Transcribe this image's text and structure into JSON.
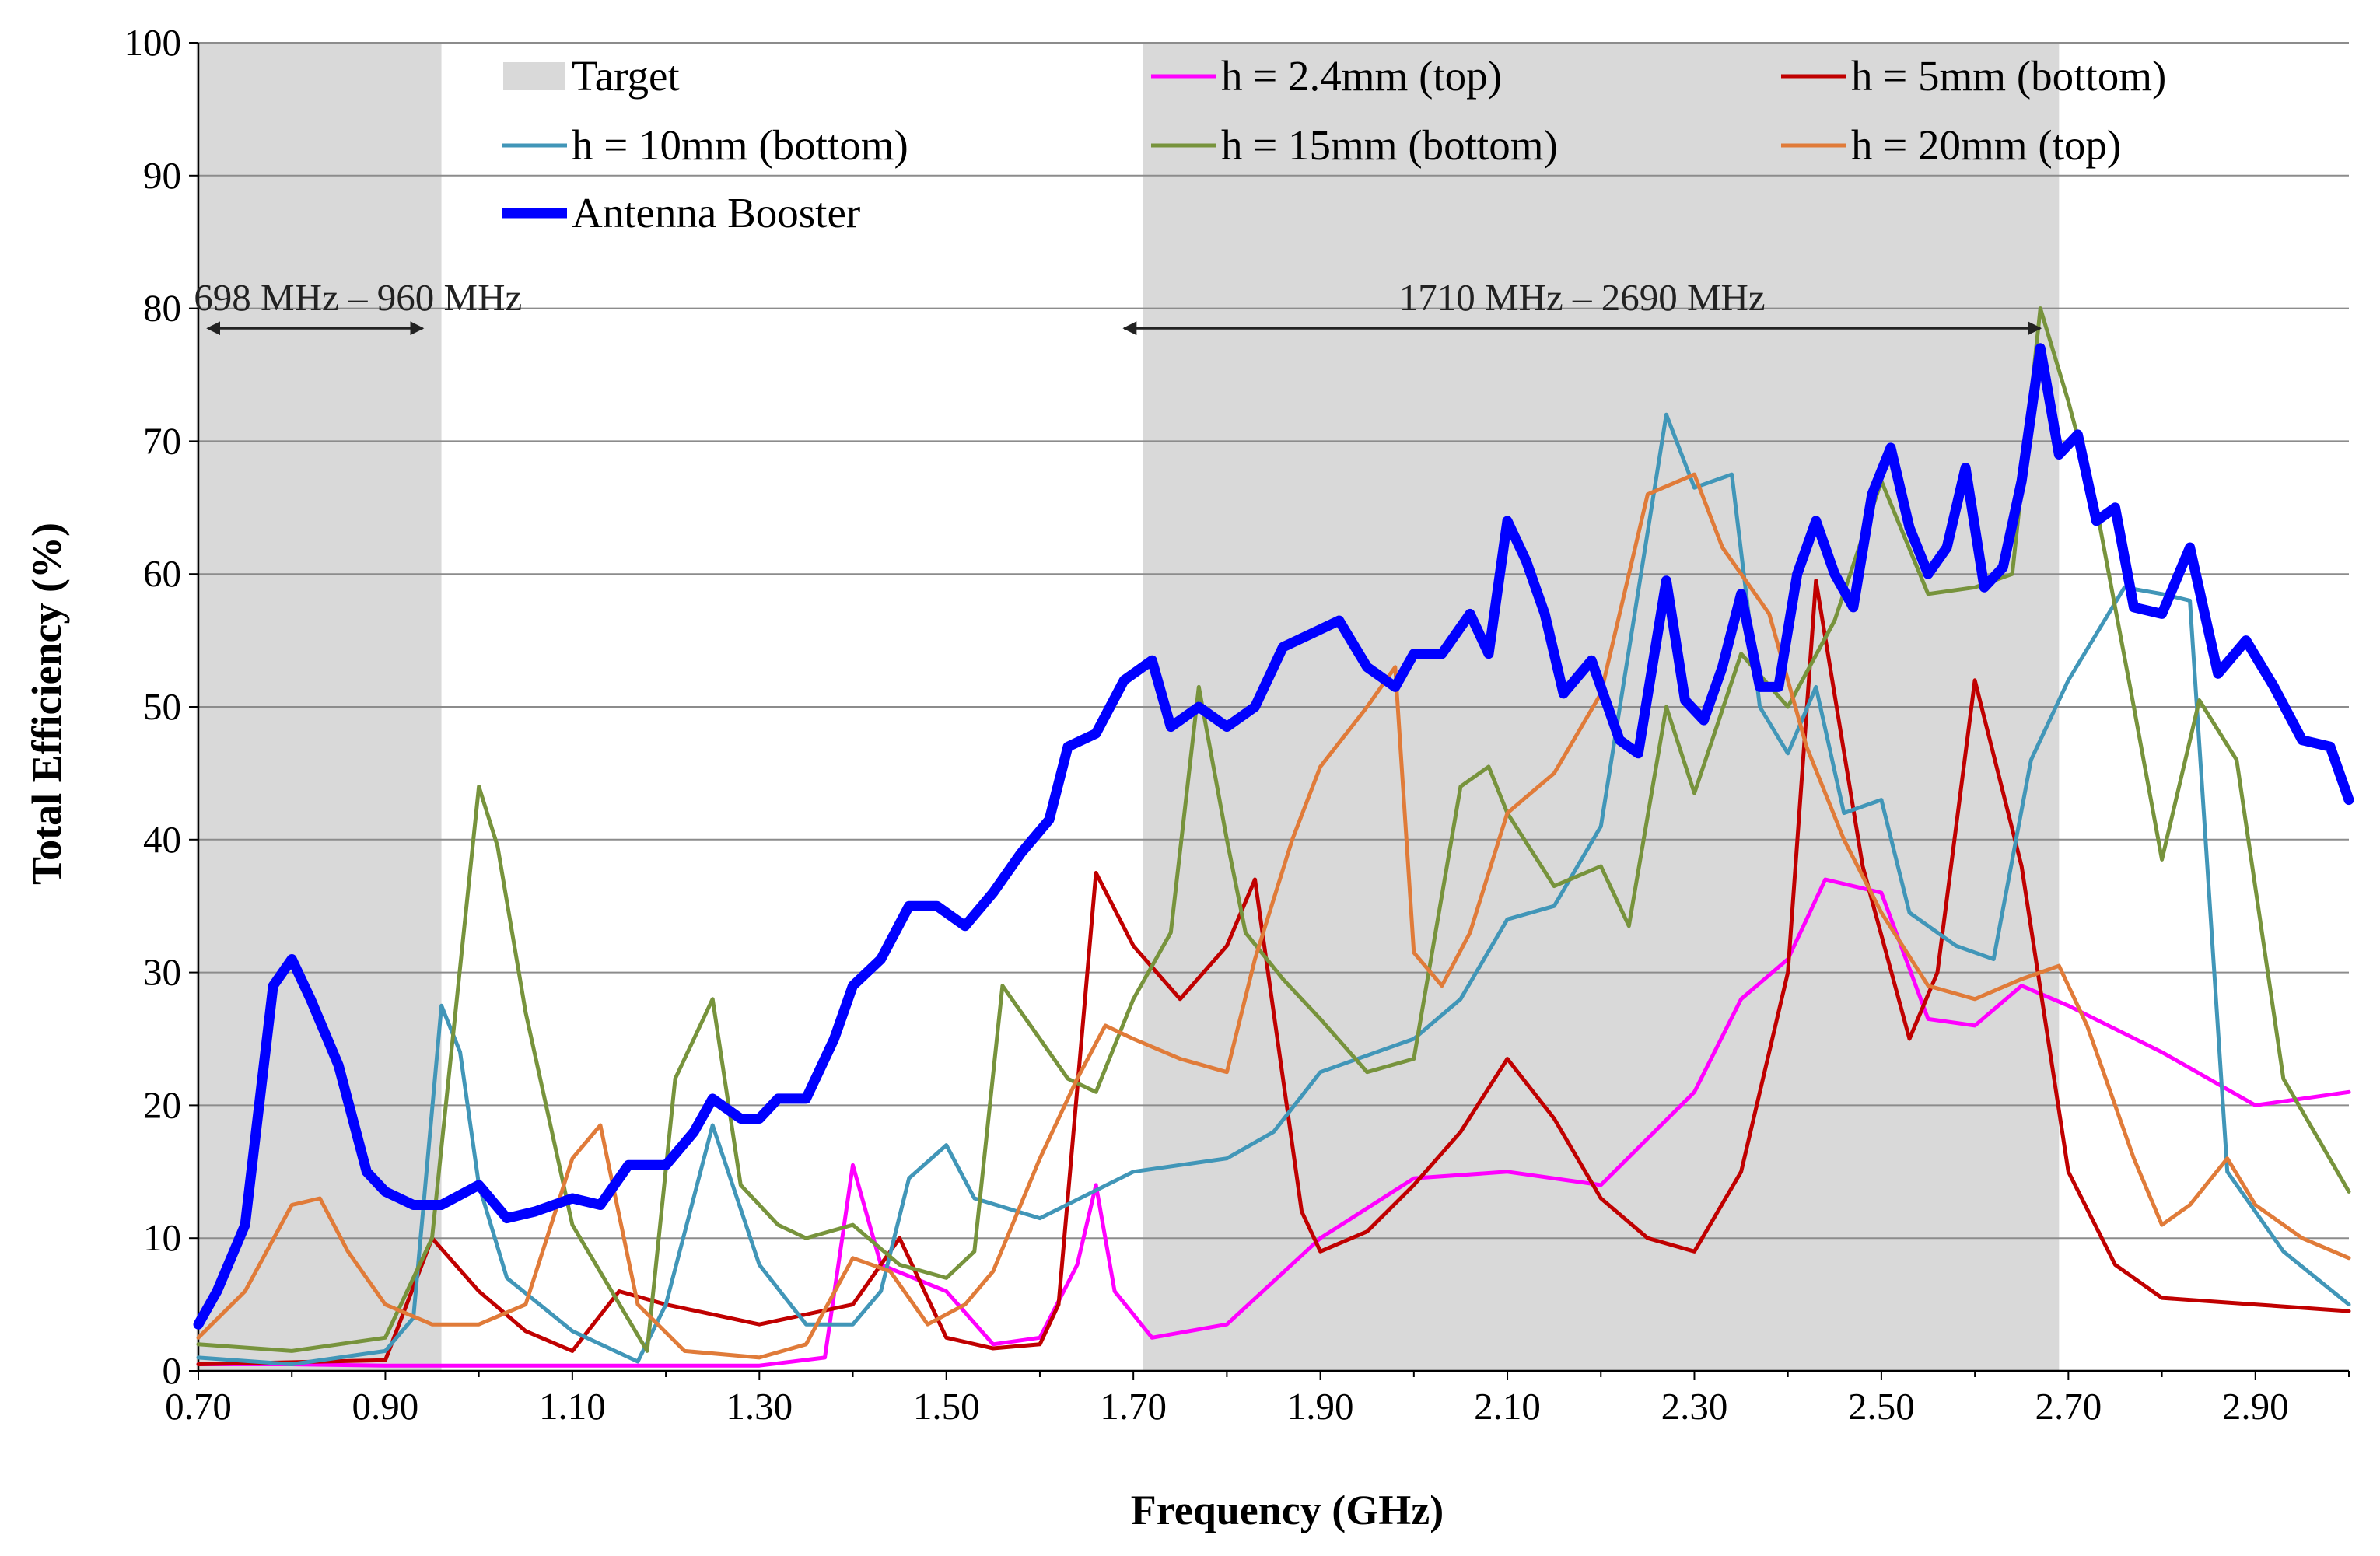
{
  "chart_data": {
    "type": "line",
    "xlabel": "Frequency (GHz)",
    "ylabel": "Total Efficiency (%)",
    "xlim": [
      0.7,
      3.0
    ],
    "ylim": [
      0,
      100
    ],
    "xticks": [
      0.7,
      0.9,
      1.1,
      1.3,
      1.5,
      1.7,
      1.9,
      2.1,
      2.3,
      2.5,
      2.7,
      2.9
    ],
    "xtick_labels": [
      "0.70",
      "0.90",
      "1.10",
      "1.30",
      "1.50",
      "1.70",
      "1.90",
      "2.10",
      "2.30",
      "2.50",
      "2.70",
      "2.90"
    ],
    "yticks": [
      0,
      10,
      20,
      30,
      40,
      50,
      60,
      70,
      80,
      90,
      100
    ],
    "ytick_labels": [
      "0",
      "10",
      "20",
      "30",
      "40",
      "50",
      "60",
      "70",
      "80",
      "90",
      "100"
    ],
    "grid": "horizontal",
    "target_bands": [
      [
        0.698,
        0.96
      ],
      [
        1.71,
        2.69
      ]
    ],
    "target_label": "Target",
    "target_color": "#d9d9d9",
    "annotations": [
      {
        "label": "698 MHz – 960 MHz",
        "from": 0.71,
        "to": 0.94,
        "y": 78.5
      },
      {
        "label": "1710 MHz – 2690 MHz",
        "from": 1.69,
        "to": 2.67,
        "y": 78.5
      }
    ],
    "legend_position": "top",
    "series": [
      {
        "name": "h = 2.4mm (top)",
        "color": "#ff00ff",
        "width": 5,
        "x": [
          0.7,
          0.8,
          0.9,
          1.0,
          1.1,
          1.2,
          1.3,
          1.37,
          1.4,
          1.43,
          1.5,
          1.55,
          1.6,
          1.64,
          1.66,
          1.68,
          1.72,
          1.8,
          1.9,
          2.0,
          2.1,
          2.2,
          2.3,
          2.35,
          2.4,
          2.44,
          2.5,
          2.55,
          2.6,
          2.65,
          2.7,
          2.8,
          2.9,
          3.0
        ],
        "y": [
          0.5,
          0.5,
          0.4,
          0.4,
          0.4,
          0.4,
          0.4,
          1,
          15.5,
          8,
          6,
          2,
          2.5,
          8,
          14,
          6,
          2.5,
          3.5,
          10,
          14.5,
          15,
          14,
          21,
          28,
          31,
          37,
          36,
          26.5,
          26,
          29,
          27.5,
          24,
          20,
          21
        ]
      },
      {
        "name": "h = 5mm (bottom)",
        "color": "#c00000",
        "width": 5,
        "x": [
          0.7,
          0.9,
          0.95,
          1.0,
          1.05,
          1.1,
          1.15,
          1.2,
          1.3,
          1.4,
          1.45,
          1.5,
          1.55,
          1.6,
          1.62,
          1.66,
          1.7,
          1.75,
          1.8,
          1.83,
          1.88,
          1.9,
          1.95,
          2.0,
          2.05,
          2.1,
          2.15,
          2.2,
          2.25,
          2.3,
          2.35,
          2.4,
          2.43,
          2.48,
          2.53,
          2.56,
          2.6,
          2.65,
          2.7,
          2.75,
          2.8,
          2.9,
          3.0
        ],
        "y": [
          0.5,
          0.8,
          10,
          6,
          3,
          1.5,
          6,
          5,
          3.5,
          5,
          10,
          2.5,
          1.7,
          2,
          5,
          37.5,
          32,
          28,
          32,
          37,
          12,
          9,
          10.5,
          14,
          18,
          23.5,
          19,
          13,
          10,
          9,
          15,
          30,
          59.5,
          38,
          25,
          30,
          52,
          38,
          15,
          8,
          5.5,
          5,
          4.5
        ]
      },
      {
        "name": "h = 10mm (bottom)",
        "color": "#4196b8",
        "width": 5,
        "x": [
          0.7,
          0.8,
          0.9,
          0.93,
          0.96,
          0.98,
          1.0,
          1.03,
          1.1,
          1.17,
          1.2,
          1.25,
          1.3,
          1.35,
          1.4,
          1.43,
          1.46,
          1.5,
          1.53,
          1.6,
          1.7,
          1.8,
          1.85,
          1.9,
          2.0,
          2.05,
          2.1,
          2.15,
          2.2,
          2.27,
          2.3,
          2.34,
          2.37,
          2.4,
          2.43,
          2.46,
          2.5,
          2.53,
          2.58,
          2.62,
          2.66,
          2.7,
          2.76,
          2.8,
          2.83,
          2.87,
          2.93,
          3.0
        ],
        "y": [
          1,
          0.5,
          1.5,
          4,
          27.5,
          24,
          14,
          7,
          3,
          0.7,
          5,
          18.5,
          8,
          3.5,
          3.5,
          6,
          14.5,
          17,
          13,
          11.5,
          15,
          16,
          18,
          22.5,
          25,
          28,
          34,
          35,
          41,
          72,
          66.5,
          67.5,
          50,
          46.5,
          51.5,
          42,
          43,
          34.5,
          32,
          31,
          46,
          52,
          59,
          58.5,
          58,
          15,
          9,
          5
        ]
      },
      {
        "name": "h = 15mm (bottom)",
        "color": "#77933c",
        "width": 5,
        "x": [
          0.7,
          0.8,
          0.9,
          0.95,
          1.0,
          1.02,
          1.05,
          1.1,
          1.18,
          1.21,
          1.25,
          1.28,
          1.32,
          1.35,
          1.4,
          1.45,
          1.5,
          1.53,
          1.56,
          1.6,
          1.63,
          1.66,
          1.7,
          1.74,
          1.77,
          1.8,
          1.82,
          1.86,
          1.9,
          1.95,
          2.0,
          2.05,
          2.08,
          2.1,
          2.15,
          2.2,
          2.23,
          2.27,
          2.3,
          2.35,
          2.4,
          2.45,
          2.5,
          2.55,
          2.6,
          2.64,
          2.67,
          2.7,
          2.73,
          2.77,
          2.8,
          2.84,
          2.88,
          2.93,
          3.0
        ],
        "y": [
          2,
          1.5,
          2.5,
          10,
          44,
          39.5,
          27,
          11,
          1.5,
          22,
          28,
          14,
          11,
          10,
          11,
          8,
          7,
          9,
          29,
          25,
          22,
          21,
          28,
          33,
          51.5,
          40,
          33,
          29.5,
          26.5,
          22.5,
          23.5,
          44,
          45.5,
          42,
          36.5,
          38,
          33.5,
          50,
          43.5,
          54,
          50,
          56.5,
          67,
          58.5,
          59,
          60,
          80,
          73,
          65,
          50,
          38.5,
          50.5,
          46,
          22,
          13.5
        ]
      },
      {
        "name": "h = 20mm (top)",
        "color": "#e07b39",
        "width": 5,
        "x": [
          0.7,
          0.75,
          0.8,
          0.83,
          0.86,
          0.9,
          0.95,
          1.0,
          1.05,
          1.1,
          1.13,
          1.17,
          1.22,
          1.3,
          1.35,
          1.4,
          1.44,
          1.48,
          1.52,
          1.55,
          1.6,
          1.64,
          1.67,
          1.7,
          1.75,
          1.8,
          1.83,
          1.87,
          1.9,
          1.95,
          1.98,
          2.0,
          2.03,
          2.06,
          2.1,
          2.15,
          2.2,
          2.25,
          2.3,
          2.33,
          2.38,
          2.42,
          2.46,
          2.5,
          2.55,
          2.6,
          2.65,
          2.69,
          2.72,
          2.77,
          2.8,
          2.83,
          2.87,
          2.9,
          2.95,
          3.0
        ],
        "y": [
          2.5,
          6,
          12.5,
          13,
          9,
          5,
          3.5,
          3.5,
          5,
          16,
          18.5,
          5,
          1.5,
          1,
          2,
          8.5,
          7.5,
          3.5,
          5,
          7.5,
          16,
          22,
          26,
          25,
          23.5,
          22.5,
          31,
          40,
          45.5,
          50,
          53,
          31.5,
          29,
          33,
          42,
          45,
          51,
          66,
          67.5,
          62,
          57,
          47,
          40,
          34.5,
          29,
          28,
          29.5,
          30.5,
          26,
          16,
          11,
          12.5,
          16,
          12.5,
          10,
          8.5
        ]
      },
      {
        "name": "Antenna Booster",
        "color": "#0000ff",
        "width": 13,
        "x": [
          0.7,
          0.72,
          0.75,
          0.78,
          0.8,
          0.82,
          0.85,
          0.88,
          0.9,
          0.93,
          0.96,
          1.0,
          1.03,
          1.06,
          1.1,
          1.13,
          1.16,
          1.2,
          1.23,
          1.25,
          1.28,
          1.3,
          1.32,
          1.35,
          1.38,
          1.4,
          1.43,
          1.46,
          1.49,
          1.52,
          1.55,
          1.58,
          1.61,
          1.63,
          1.66,
          1.69,
          1.72,
          1.74,
          1.77,
          1.8,
          1.83,
          1.86,
          1.89,
          1.92,
          1.95,
          1.98,
          2.0,
          2.03,
          2.06,
          2.08,
          2.1,
          2.12,
          2.14,
          2.16,
          2.19,
          2.22,
          2.24,
          2.27,
          2.29,
          2.31,
          2.33,
          2.35,
          2.37,
          2.39,
          2.41,
          2.43,
          2.45,
          2.47,
          2.49,
          2.51,
          2.53,
          2.55,
          2.57,
          2.59,
          2.61,
          2.63,
          2.65,
          2.67,
          2.69,
          2.71,
          2.73,
          2.75,
          2.77,
          2.8,
          2.83,
          2.86,
          2.89,
          2.92,
          2.95,
          2.98,
          3.0
        ],
        "y": [
          3.5,
          6,
          11,
          29,
          31,
          28,
          23,
          15,
          13.5,
          12.5,
          12.5,
          14,
          11.5,
          12,
          13,
          12.5,
          15.5,
          15.5,
          18,
          20.5,
          19,
          19,
          20.5,
          20.5,
          25,
          29,
          31,
          35,
          35,
          33.5,
          36,
          39,
          41.5,
          47,
          48,
          52,
          53.5,
          48.5,
          50,
          48.5,
          50,
          54.5,
          55.5,
          56.5,
          53,
          51.5,
          54,
          54,
          57,
          54,
          64,
          61,
          57,
          51,
          53.5,
          47.5,
          46.5,
          59.5,
          50.5,
          49,
          53,
          58.5,
          51.5,
          51.5,
          60,
          64,
          60,
          57.5,
          66,
          69.5,
          63.5,
          60,
          62,
          68,
          59,
          60.5,
          67,
          77,
          69,
          70.5,
          64,
          65,
          57.5,
          57,
          62,
          52.5,
          55,
          51.5,
          47.5,
          47,
          43
        ]
      }
    ]
  }
}
